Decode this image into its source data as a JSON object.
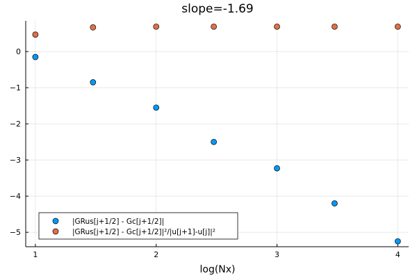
{
  "chart_data": {
    "type": "scatter",
    "title": "slope=-1.69",
    "xlabel": "log(Nx)",
    "ylabel": "",
    "xlim": [
      0.92,
      4.09
    ],
    "ylim": [
      -5.4,
      0.85
    ],
    "xticks": [
      1,
      2,
      3,
      4
    ],
    "yticks": [
      0,
      -1,
      -2,
      -3,
      -4,
      -5
    ],
    "xtick_labels": [
      "1",
      "2",
      "3",
      "4"
    ],
    "ytick_labels": [
      "0",
      "−1",
      "−2",
      "−3",
      "−4",
      "−5"
    ],
    "grid": true,
    "legend_position": "bottom-left",
    "series": [
      {
        "name": "|GRus[j+1/2] - Gc[j+1/2]|",
        "color": "#009af9",
        "x": [
          1.0,
          1.477,
          2.0,
          2.477,
          3.0,
          3.477,
          4.0
        ],
        "y": [
          -0.15,
          -0.85,
          -1.55,
          -2.5,
          -3.23,
          -4.2,
          -5.25
        ]
      },
      {
        "name": "|GRus[j+1/2] - Gc[j+1/2]|²/|u[j+1]-u[j]|²",
        "color": "#e26f46",
        "x": [
          1.0,
          1.477,
          2.0,
          2.477,
          3.0,
          3.477,
          4.0
        ],
        "y": [
          0.47,
          0.67,
          0.69,
          0.69,
          0.69,
          0.69,
          0.69
        ]
      }
    ]
  }
}
